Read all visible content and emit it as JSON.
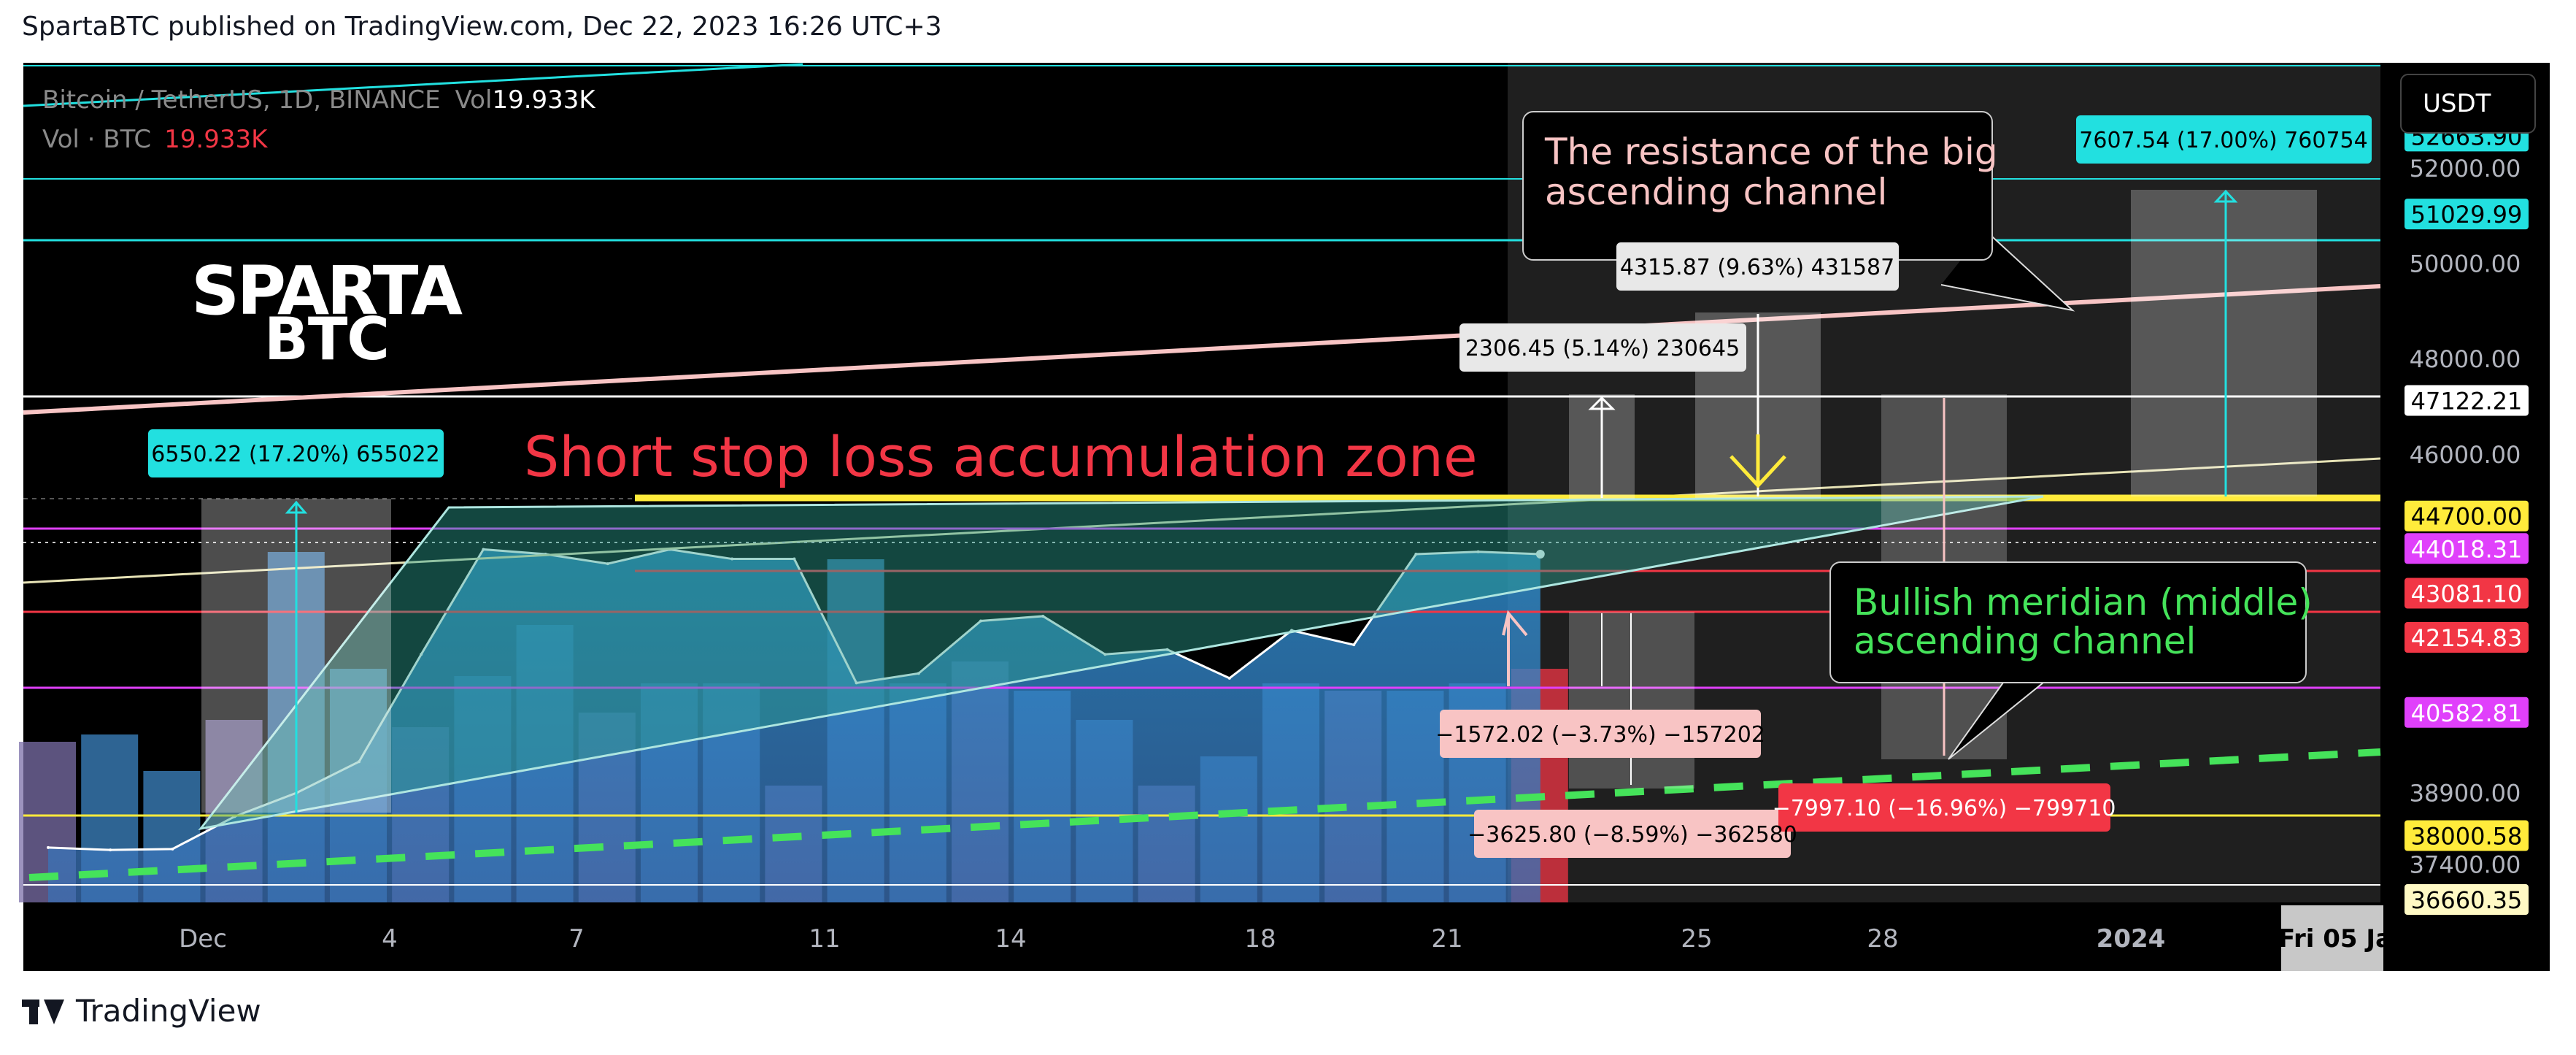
{
  "header": {
    "publish_line": "SpartaBTC published on TradingView.com, Dec 22, 2023 16:26 UTC+3"
  },
  "footer": {
    "brand": "TradingView"
  },
  "symbol_info": {
    "line1_prefix": "Bitcoin / TetherUS, 1D, BINANCE",
    "vol_label": "Vol",
    "vol_value": "19.933K",
    "line2_prefix": "Vol · BTC",
    "line2_value": "19.933K"
  },
  "currency_button": "USDT",
  "logo": {
    "line1": "SPARTA",
    "line2": "BTC"
  },
  "colors": {
    "background": "#000000",
    "area_fill": "#2e8fd0",
    "channel_line": "#f8c4c4",
    "resistance_yellow": "#ffeb3b",
    "dashed_green": "#45e35a",
    "cyan": "#22e0e0",
    "magenta": "#e040fb",
    "red": "#f23645"
  },
  "chart_data": {
    "type": "area",
    "ylim": [
      36600,
      54200
    ],
    "x_ticks": [
      "Dec",
      "4",
      "7",
      "11",
      "14",
      "18",
      "21",
      "25",
      "28",
      "2024",
      "Fri 05 Ja"
    ],
    "y_ticks": [
      52000,
      50000,
      48000,
      46000,
      38900,
      37400
    ],
    "series": [
      {
        "values": [
          37750,
          37700,
          37720,
          38400,
          38900,
          39550,
          41800,
          44000,
          43900,
          43700,
          44000,
          43800,
          43800,
          41200,
          41400,
          42500,
          42600,
          41800,
          41900,
          41300,
          42300,
          42000,
          43900,
          43950,
          43900
        ]
      }
    ],
    "volume_heights": [
      0.22,
      0.23,
      0.18,
      0.25,
      0.48,
      0.32,
      0.24,
      0.31,
      0.38,
      0.26,
      0.3,
      0.3,
      0.16,
      0.47,
      0.3,
      0.33,
      0.29,
      0.25,
      0.16,
      0.2,
      0.3,
      0.29,
      0.29,
      0.3,
      0.32
    ],
    "price_tags": [
      {
        "value": "52663.90",
        "bg": "#22e0e0",
        "fg": "#000000"
      },
      {
        "value": "51029.99",
        "bg": "#22e0e0",
        "fg": "#000000"
      },
      {
        "value": "47122.21",
        "bg": "#ffffff",
        "fg": "#000000"
      },
      {
        "value": "44700.00",
        "bg": "#ffeb3b",
        "fg": "#000000"
      },
      {
        "value": "44018.31",
        "bg": "#e040fb",
        "fg": "#ffffff"
      },
      {
        "value": "43081.10",
        "bg": "#f23645",
        "fg": "#ffffff"
      },
      {
        "value": "42154.83",
        "bg": "#f23645",
        "fg": "#ffffff"
      },
      {
        "value": "40582.81",
        "bg": "#e040fb",
        "fg": "#ffffff"
      },
      {
        "value": "38000.58",
        "bg": "#ffeb3b",
        "fg": "#000000"
      },
      {
        "value": "36660.35",
        "bg": "#fff9c4",
        "fg": "#000000"
      }
    ],
    "annotations": {
      "zone_title": "Short stop loss accumulation zone",
      "resistance_note": "The resistance of the big ascending channel",
      "meridian_note": "Bullish meridian (middle) ascending channel"
    },
    "measure_labels": {
      "m1": "6550.22 (17.20%) 655022",
      "m2": "2306.45 (5.14%) 230645",
      "m3": "4315.87 (9.63%) 431587",
      "m4": "7607.54 (17.00%) 760754",
      "m5": "−1572.02 (−3.73%) −157202",
      "m6": "−3625.80 (−8.59%) −362580",
      "m7": "−7997.10 (−16.96%) −799710"
    }
  }
}
